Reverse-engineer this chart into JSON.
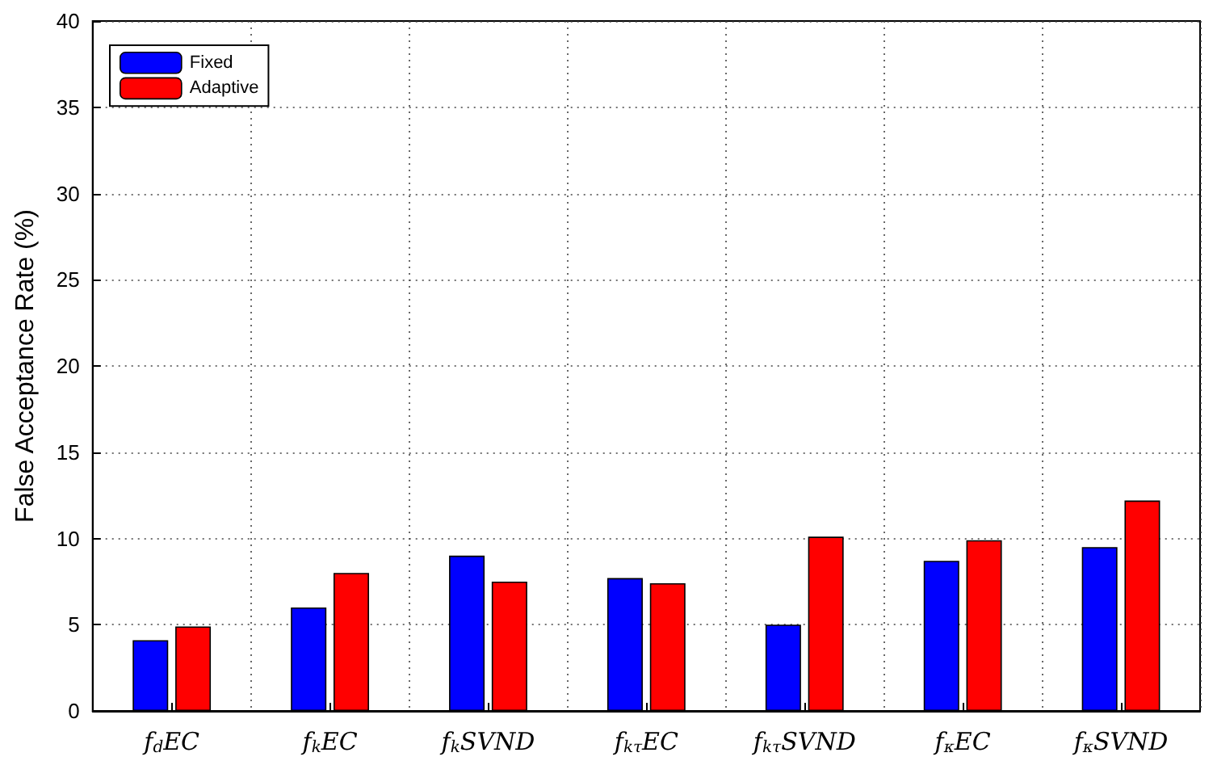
{
  "chart_data": {
    "type": "bar",
    "ylabel": "False Acceptance Rate (%)",
    "categories": [
      "f$_{d}$EC",
      "f$_{k}$EC",
      "f$_{k}$SVND",
      "f$_{kτ}$EC",
      "f$_{kτ}$SVND",
      "f$_{κ}$EC",
      "f$_{κ}$SVND"
    ],
    "series": [
      {
        "name": "Fixed",
        "color": "#0000ff",
        "values": [
          4.1,
          6.0,
          9.0,
          7.7,
          5.0,
          8.7,
          9.5
        ]
      },
      {
        "name": "Adaptive",
        "color": "#ff0000",
        "values": [
          4.9,
          8.0,
          7.5,
          7.4,
          10.1,
          9.9,
          12.2
        ]
      }
    ],
    "ylim": [
      0,
      40
    ],
    "yticks": [
      0,
      5,
      10,
      15,
      20,
      25,
      30,
      35,
      40
    ],
    "grid": true,
    "legend": "top left"
  }
}
